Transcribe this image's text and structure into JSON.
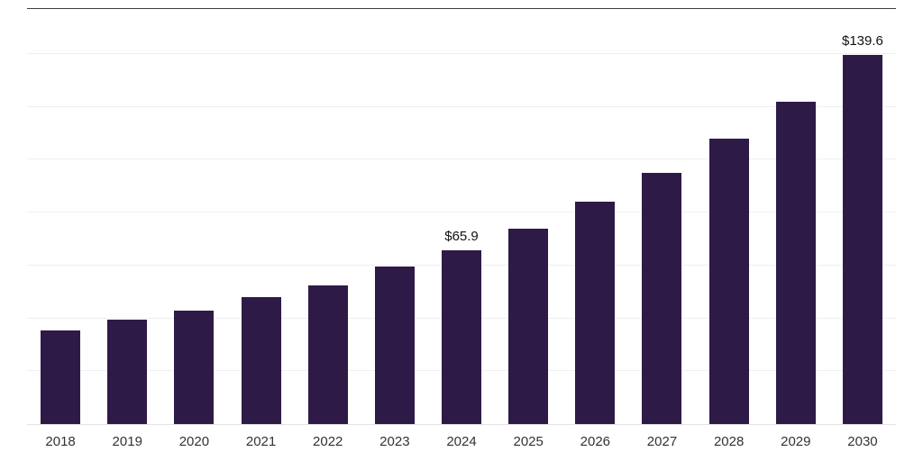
{
  "chart_data": {
    "type": "bar",
    "title": "",
    "xlabel": "",
    "ylabel": "",
    "categories": [
      "2018",
      "2019",
      "2020",
      "2021",
      "2022",
      "2023",
      "2024",
      "2025",
      "2026",
      "2027",
      "2028",
      "2029",
      "2030"
    ],
    "values": [
      35.5,
      39.5,
      43.0,
      48.0,
      52.5,
      59.5,
      65.9,
      74.0,
      84.0,
      95.0,
      108.0,
      122.0,
      139.6
    ],
    "data_labels": [
      "",
      "",
      "",
      "",
      "",
      "",
      "$65.9",
      "",
      "",
      "",
      "",
      "",
      "$139.6"
    ],
    "ylim": [
      0,
      157
    ],
    "gridline_step": 20,
    "grid": true,
    "legend": "none",
    "bar_color": "#2e1a47",
    "grid_color": "#f0eef3",
    "top_border_color": "#3f3f3f",
    "baseline_color": "#e4e2e8",
    "axis_text_color": "#333333",
    "data_label_color": "#111111"
  }
}
